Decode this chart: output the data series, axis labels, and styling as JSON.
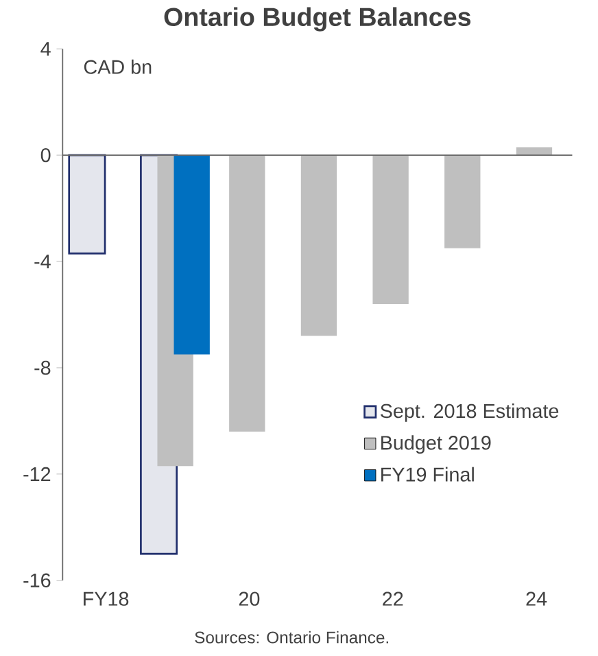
{
  "chart_data": {
    "type": "bar",
    "title": "Ontario Budget Balances",
    "ylabel": "CAD bn",
    "categories": [
      "FY18",
      null,
      "20",
      null,
      "22",
      null,
      "24"
    ],
    "series": [
      {
        "name": "Sept. 2018 Estimate",
        "color": "#1f2d6b",
        "values": [
          -3.7,
          -15.0,
          null,
          null,
          null,
          null,
          null
        ]
      },
      {
        "name": "Budget 2019",
        "color": "#bfbfbf",
        "values": [
          null,
          -11.7,
          -10.4,
          -6.8,
          -5.6,
          -3.5,
          0.3
        ]
      },
      {
        "name": "FY19 Final",
        "color": "#0070c0",
        "values": [
          null,
          -7.5,
          null,
          null,
          null,
          null,
          null
        ]
      }
    ],
    "ylim": [
      -16,
      4
    ],
    "yticks": [
      -16,
      -12,
      -8,
      -4,
      0,
      4
    ],
    "legend": "bottom right",
    "annotations": [
      "Sources: Ontario Finance."
    ]
  }
}
